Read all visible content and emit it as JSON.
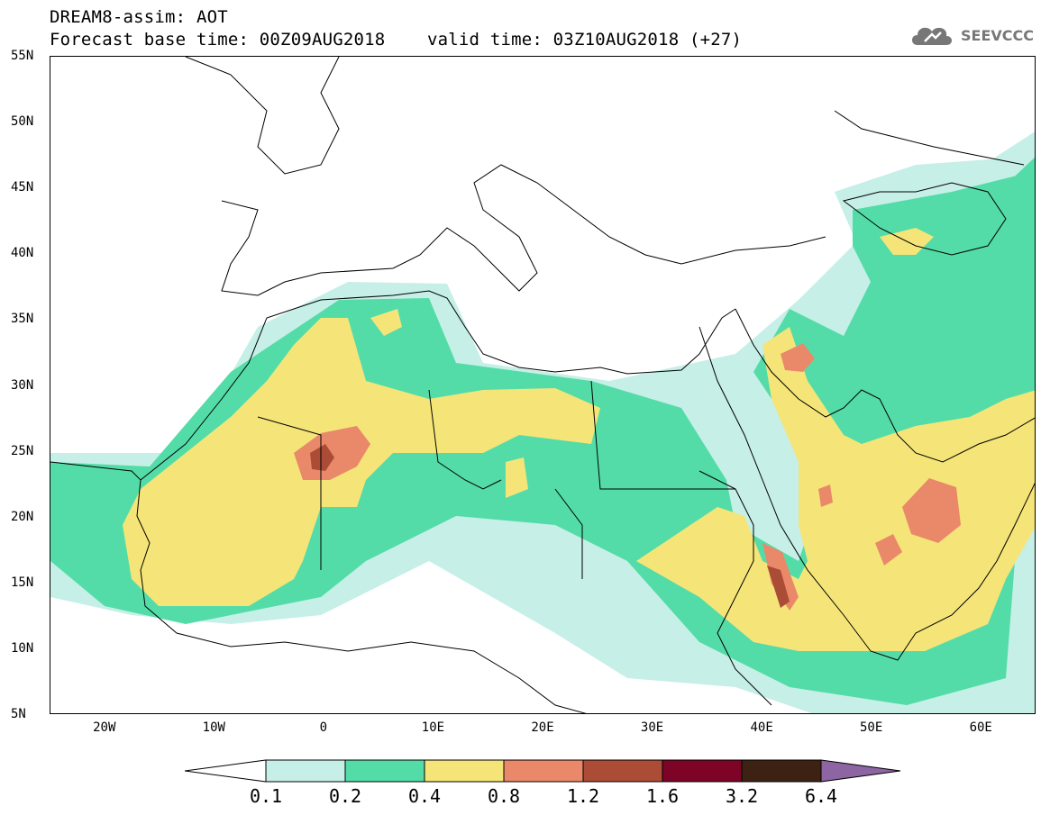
{
  "title": {
    "line1": "DREAM8-assim: AOT",
    "line2": "Forecast base time: 00Z09AUG2018    valid time: 03Z10AUG2018 (+27)"
  },
  "logo": {
    "text": "SEEVCCC",
    "icon": "cloud-icon"
  },
  "map": {
    "lat_labels": [
      "55N",
      "50N",
      "45N",
      "40N",
      "35N",
      "30N",
      "25N",
      "20N",
      "15N",
      "10N",
      "5N"
    ],
    "lon_labels": [
      "20W",
      "10W",
      "0",
      "10E",
      "20E",
      "30E",
      "40E",
      "50E",
      "60E"
    ],
    "colors": {
      "c01": "#c6efe8",
      "c02": "#54dca8",
      "c04": "#f5e579",
      "c08": "#e9896a",
      "c12": "#ab4c36",
      "c16": "#7d0327",
      "c32": "#3d2213",
      "c64": "#8d65a3"
    }
  },
  "colorbar": {
    "labels": [
      "0.1",
      "0.2",
      "0.4",
      "0.8",
      "1.2",
      "1.6",
      "3.2",
      "6.4"
    ],
    "colors": [
      "#c6efe8",
      "#54dca8",
      "#f5e579",
      "#e9896a",
      "#ab4c36",
      "#7d0327",
      "#3d2213"
    ],
    "under_color": "#ffffff",
    "over_color": "#8d65a3"
  }
}
